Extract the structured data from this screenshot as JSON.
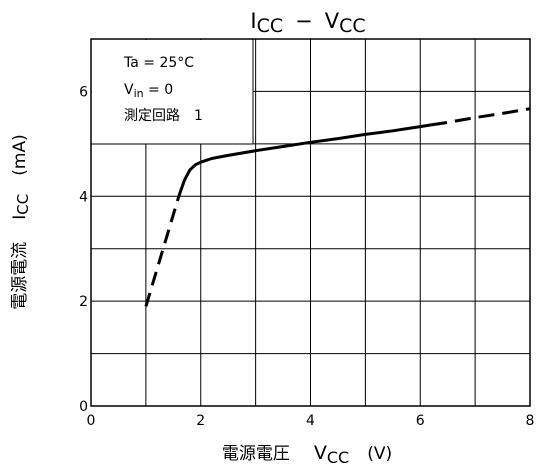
{
  "chart_data": {
    "type": "line",
    "title": {
      "main1": "I",
      "sub1": "CC",
      "dash": "−",
      "main2": "V",
      "sub2": "CC"
    },
    "xlabel": {
      "jp": "電源電圧",
      "sym": "V",
      "sub": "CC",
      "unit": "(V)"
    },
    "ylabel": {
      "jp": "電源電流",
      "sym": "I",
      "sub": "CC",
      "unit": "(mA)"
    },
    "xlim": [
      0,
      8
    ],
    "ylim": [
      0,
      7
    ],
    "x_ticks": [
      "0",
      "2",
      "4",
      "6",
      "8"
    ],
    "y_ticks": [
      "0",
      "2",
      "4",
      "6"
    ],
    "grid": true,
    "conditions": {
      "ta": "Ta = 25°C",
      "vin_main": "V",
      "vin_sub": "in",
      "vin_rest": " = 0",
      "circuit": "測定回路",
      "circuit_num": "1"
    },
    "series": [
      {
        "x": [
          1.0,
          1.6,
          1.7,
          1.8,
          1.9,
          2.0,
          2.2,
          2.5,
          3.0,
          3.5,
          4.0,
          4.5,
          5.0,
          5.5,
          6.0,
          6.5,
          7.0,
          7.5,
          8.0
        ],
        "y": [
          1.9,
          4.0,
          4.3,
          4.5,
          4.6,
          4.65,
          4.72,
          4.78,
          4.87,
          4.95,
          5.03,
          5.1,
          5.18,
          5.25,
          5.33,
          5.41,
          5.5,
          5.58,
          5.67
        ],
        "solid_range": [
          1.6,
          6.2
        ]
      }
    ]
  }
}
